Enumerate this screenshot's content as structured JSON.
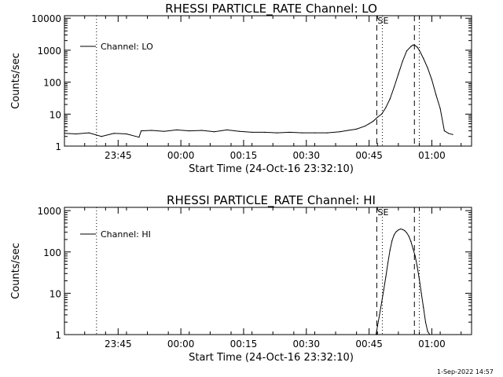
{
  "footer": {
    "timestamp": "1-Sep-2022 14:57"
  },
  "chart_data": [
    {
      "type": "line",
      "title": "RHESSI PARTICLE_RATE Channel: LO",
      "xlabel": "Start Time (24-Oct-16 23:32:10)",
      "ylabel": "Counts/sec",
      "yscale": "log",
      "ylim": [
        1,
        12000
      ],
      "xlim": [
        "23:32:10",
        "01:09:30"
      ],
      "x_tick_labels": [
        "23:45",
        "00:00",
        "00:15",
        "00:30",
        "00:45",
        "01:00"
      ],
      "y_tick_labels": [
        "1",
        "10",
        "100",
        "1000",
        "10000"
      ],
      "legend": {
        "position": "top-left",
        "entries": [
          "Channel: LO"
        ]
      },
      "markers": [
        {
          "label": "S",
          "time": "00:46:50",
          "style": "dashed"
        },
        {
          "label": "E",
          "time": "00:48:10",
          "style": "dotted"
        },
        {
          "label": "",
          "time": "00:55:50",
          "style": "dashed"
        },
        {
          "label": "",
          "time": "00:57:00",
          "style": "dotted"
        },
        {
          "label": "",
          "time": "23:39:50",
          "style": "dotted"
        }
      ],
      "series": [
        {
          "name": "Channel: LO",
          "x": [
            "23:32:10",
            "23:35:00",
            "23:38:00",
            "23:41:00",
            "23:44:00",
            "23:47:00",
            "23:50:00",
            "23:50:30",
            "23:53:00",
            "23:56:00",
            "23:59:00",
            "00:02:00",
            "00:05:00",
            "00:08:00",
            "00:11:00",
            "00:14:00",
            "00:17:00",
            "00:20:00",
            "00:23:00",
            "00:26:00",
            "00:29:00",
            "00:32:00",
            "00:35:00",
            "00:38:00",
            "00:40:00",
            "00:42:00",
            "00:44:00",
            "00:45:00",
            "00:46:00",
            "00:47:00",
            "00:48:00",
            "00:49:00",
            "00:50:00",
            "00:51:00",
            "00:52:00",
            "00:53:00",
            "00:54:00",
            "00:55:00",
            "00:55:30",
            "00:56:00",
            "00:56:30",
            "00:57:00",
            "00:58:00",
            "00:59:00",
            "01:00:00",
            "01:01:00",
            "01:02:00",
            "01:03:00",
            "01:04:00",
            "01:05:00"
          ],
          "y": [
            2.5,
            2.4,
            2.6,
            2.0,
            2.5,
            2.4,
            1.9,
            3.0,
            3.1,
            2.9,
            3.2,
            3.0,
            3.1,
            2.8,
            3.2,
            2.9,
            2.7,
            2.7,
            2.6,
            2.7,
            2.6,
            2.6,
            2.6,
            2.8,
            3.1,
            3.4,
            4.2,
            5,
            6,
            8,
            10,
            16,
            30,
            70,
            180,
            450,
            950,
            1300,
            1450,
            1400,
            1250,
            1000,
            550,
            280,
            120,
            40,
            15,
            3,
            2.5,
            2.3
          ]
        }
      ]
    },
    {
      "type": "line",
      "title": "RHESSI PARTICLE_RATE Channel: HI",
      "xlabel": "Start Time (24-Oct-16 23:32:10)",
      "ylabel": "Counts/sec",
      "yscale": "log",
      "ylim": [
        1,
        1200
      ],
      "xlim": [
        "23:32:10",
        "01:09:30"
      ],
      "x_tick_labels": [
        "23:45",
        "00:00",
        "00:15",
        "00:30",
        "00:45",
        "01:00"
      ],
      "y_tick_labels": [
        "1",
        "10",
        "100",
        "1000"
      ],
      "legend": {
        "position": "top-left",
        "entries": [
          "Channel: HI"
        ]
      },
      "markers": [
        {
          "label": "S",
          "time": "00:46:50",
          "style": "dashed"
        },
        {
          "label": "E",
          "time": "00:48:10",
          "style": "dotted"
        },
        {
          "label": "",
          "time": "00:55:50",
          "style": "dashed"
        },
        {
          "label": "",
          "time": "00:57:00",
          "style": "dotted"
        },
        {
          "label": "",
          "time": "23:39:50",
          "style": "dotted"
        }
      ],
      "series": [
        {
          "name": "Channel: HI",
          "x": [
            "00:46:40",
            "00:47:00",
            "00:47:30",
            "00:48:00",
            "00:48:30",
            "00:49:00",
            "00:49:30",
            "00:50:00",
            "00:50:30",
            "00:51:00",
            "00:51:30",
            "00:52:00",
            "00:52:30",
            "00:53:00",
            "00:53:30",
            "00:54:00",
            "00:54:30",
            "00:55:00",
            "00:55:30",
            "00:56:00",
            "00:56:30",
            "00:57:00",
            "00:57:30",
            "00:58:00",
            "00:58:30",
            "00:59:00",
            "00:59:30"
          ],
          "y": [
            1,
            1.6,
            3,
            6,
            12,
            25,
            55,
            110,
            190,
            260,
            310,
            340,
            360,
            350,
            330,
            290,
            240,
            180,
            120,
            80,
            45,
            22,
            10,
            4.5,
            2,
            1.2,
            1
          ]
        }
      ]
    }
  ]
}
